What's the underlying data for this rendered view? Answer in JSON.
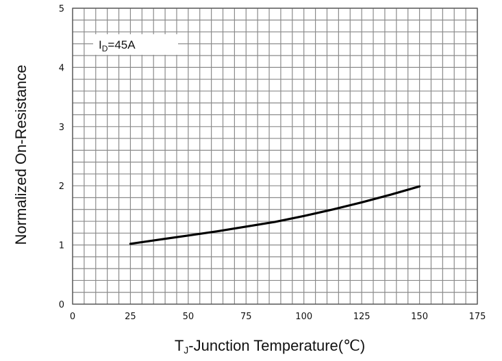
{
  "chart_data": {
    "type": "line",
    "xlabel_main": "T",
    "xlabel_sub": "J",
    "xlabel_rest": "-Junction Temperature(℃)",
    "ylabel": "Normalized On-Resistance",
    "annotation_main": "I",
    "annotation_sub": "D",
    "annotation_rest": "=45A",
    "xlim": [
      0,
      175
    ],
    "ylim": [
      0,
      5
    ],
    "x_ticks": [
      "0",
      "25",
      "50",
      "75",
      "100",
      "125",
      "150",
      "175"
    ],
    "y_ticks": [
      "0",
      "1",
      "2",
      "3",
      "4",
      "5"
    ],
    "grid": true,
    "series": [
      {
        "x": [
          25,
          37.5,
          50,
          62.5,
          75,
          87.5,
          100,
          112.5,
          125,
          137.5,
          150
        ],
        "values": [
          1.02,
          1.09,
          1.16,
          1.23,
          1.31,
          1.39,
          1.49,
          1.6,
          1.72,
          1.85,
          1.99
        ],
        "color": "#000000"
      }
    ]
  }
}
